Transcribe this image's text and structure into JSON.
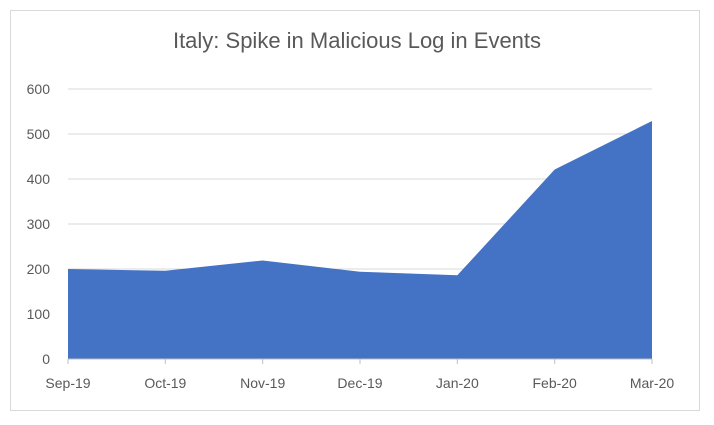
{
  "chart_data": {
    "type": "area",
    "title": "Italy: Spike in Malicious Log in Events",
    "xlabel": "",
    "ylabel": "",
    "categories": [
      "Sep-19",
      "Oct-19",
      "Nov-19",
      "Dec-19",
      "Jan-20",
      "Feb-20",
      "Mar-20"
    ],
    "series": [
      {
        "values": [
          200,
          196,
          219,
          194,
          186,
          421,
          529
        ]
      }
    ],
    "ylim": [
      0,
      600
    ],
    "yticks": [
      0,
      100,
      200,
      300,
      400,
      500,
      600
    ],
    "grid": true,
    "legend": "none",
    "colors": {
      "area": "#4472C4",
      "grid": "#d9d9d9",
      "axis": "#bfbfbf",
      "text": "#595959"
    }
  }
}
